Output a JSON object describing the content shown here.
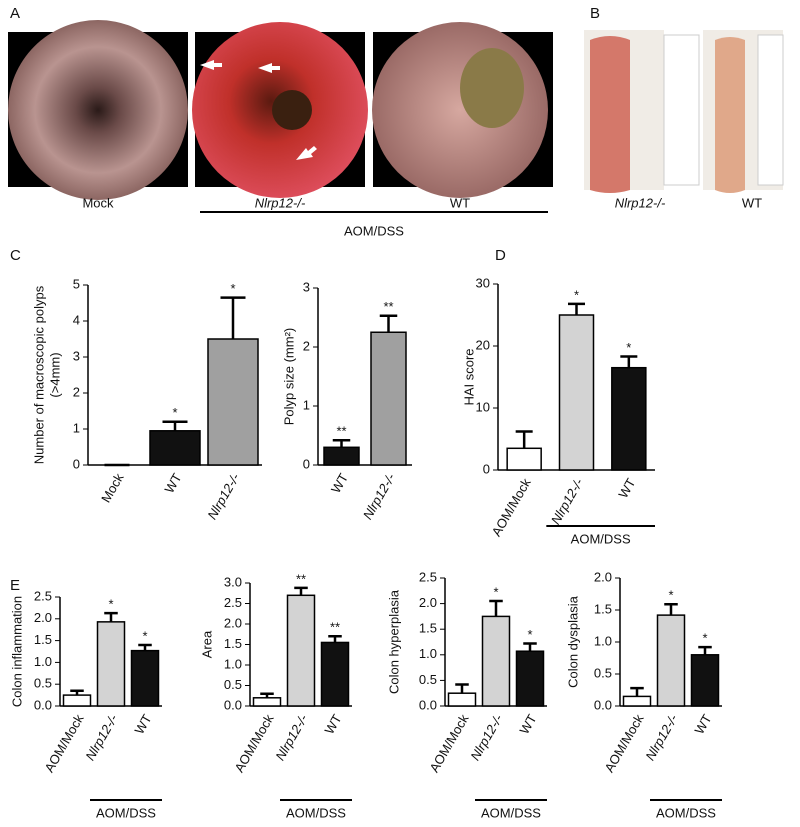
{
  "panels": {
    "letters": [
      "A",
      "B",
      "C",
      "D",
      "E"
    ],
    "photos_a": {
      "captions": [
        "Mock",
        "Nlrp12-/-",
        "WT"
      ],
      "group_label": "AOM/DSS"
    },
    "photos_b": {
      "captions": [
        "Nlrp12-/-",
        "WT"
      ]
    }
  },
  "chart_data": [
    {
      "type": "bar",
      "ylabel": [
        "Number of macroscopic polyps",
        "(>4mm)"
      ],
      "categories": [
        "Mock",
        "WT",
        "Nlrp12-/-"
      ],
      "values": [
        0,
        0.95,
        3.5
      ],
      "errors": [
        0,
        0.25,
        1.15
      ],
      "annotations": [
        null,
        "*",
        "*"
      ],
      "colors": [
        "#ffffff",
        "#111111",
        "#a0a0a0"
      ],
      "ylim": [
        0,
        5
      ],
      "yticks": [
        0,
        1,
        2,
        3,
        4,
        5
      ]
    },
    {
      "type": "bar",
      "ylabel": [
        "Polyp size (mm²)"
      ],
      "categories": [
        "WT",
        "Nlrp12-/-"
      ],
      "values": [
        0.3,
        2.25
      ],
      "errors": [
        0.12,
        0.28
      ],
      "annotations": [
        "**",
        "**"
      ],
      "colors": [
        "#111111",
        "#a0a0a0"
      ],
      "ylim": [
        0,
        3
      ],
      "yticks": [
        0,
        1,
        2,
        3
      ]
    },
    {
      "type": "bar",
      "ylabel": [
        "HAI score"
      ],
      "categories": [
        "AOM/Mock",
        "Nlrp12-/-",
        "WT"
      ],
      "values": [
        3.5,
        25,
        16.5
      ],
      "errors": [
        2.7,
        1.8,
        1.8
      ],
      "annotations": [
        null,
        "*",
        "*"
      ],
      "colors": [
        "#ffffff",
        "#d3d3d3",
        "#111111"
      ],
      "ylim": [
        0,
        30
      ],
      "yticks": [
        0,
        10,
        20,
        30
      ],
      "group_label": "AOM/DSS"
    },
    {
      "type": "bar",
      "ylabel": [
        "Colon inflammation"
      ],
      "categories": [
        "AOM/Mock",
        "Nlrp12-/-",
        "WT"
      ],
      "values": [
        0.25,
        1.93,
        1.27
      ],
      "errors": [
        0.1,
        0.2,
        0.13
      ],
      "annotations": [
        null,
        "*",
        "*"
      ],
      "colors": [
        "#ffffff",
        "#d3d3d3",
        "#111111"
      ],
      "ylim": [
        0,
        2.5
      ],
      "yticks": [
        {
          "value": 0,
          "label": "0.0"
        },
        0.5,
        {
          "value": 1,
          "label": "1.0"
        },
        1.5,
        {
          "value": 2,
          "label": "2.0"
        },
        2.5
      ],
      "group_label": "AOM/DSS"
    },
    {
      "type": "bar",
      "ylabel": [
        "Area"
      ],
      "categories": [
        "AOM/Mock",
        "Nlrp12-/-",
        "WT"
      ],
      "values": [
        0.2,
        2.7,
        1.55
      ],
      "errors": [
        0.1,
        0.18,
        0.15
      ],
      "annotations": [
        null,
        "**",
        "**"
      ],
      "colors": [
        "#ffffff",
        "#d3d3d3",
        "#111111"
      ],
      "ylim": [
        0,
        3
      ],
      "yticks": [
        {
          "value": 0,
          "label": "0.0"
        },
        0.5,
        {
          "value": 1,
          "label": "1.0"
        },
        1.5,
        {
          "value": 2,
          "label": "2.0"
        },
        2.5,
        {
          "value": 3,
          "label": "3.0"
        }
      ],
      "group_label": "AOM/DSS"
    },
    {
      "type": "bar",
      "ylabel": [
        "Colon hyperplasia"
      ],
      "categories": [
        "AOM/Mock",
        "Nlrp12-/-",
        "WT"
      ],
      "values": [
        0.25,
        1.75,
        1.07
      ],
      "errors": [
        0.17,
        0.3,
        0.15
      ],
      "annotations": [
        null,
        "*",
        "*"
      ],
      "colors": [
        "#ffffff",
        "#d3d3d3",
        "#111111"
      ],
      "ylim": [
        0,
        2.5
      ],
      "yticks": [
        {
          "value": 0,
          "label": "0.0"
        },
        0.5,
        {
          "value": 1,
          "label": "1.0"
        },
        1.5,
        {
          "value": 2,
          "label": "2.0"
        },
        2.5
      ],
      "group_label": "AOM/DSS"
    },
    {
      "type": "bar",
      "ylabel": [
        "Colon dysplasia"
      ],
      "categories": [
        "AOM/Mock",
        "Nlrp12-/-",
        "WT"
      ],
      "values": [
        0.15,
        1.42,
        0.8
      ],
      "errors": [
        0.13,
        0.17,
        0.12
      ],
      "annotations": [
        null,
        "*",
        "*"
      ],
      "colors": [
        "#ffffff",
        "#d3d3d3",
        "#111111"
      ],
      "ylim": [
        0,
        2
      ],
      "yticks": [
        {
          "value": 0,
          "label": "0.0"
        },
        0.5,
        {
          "value": 1,
          "label": "1.0"
        },
        1.5,
        {
          "value": 2,
          "label": "2.0"
        }
      ],
      "group_label": "AOM/DSS"
    }
  ]
}
